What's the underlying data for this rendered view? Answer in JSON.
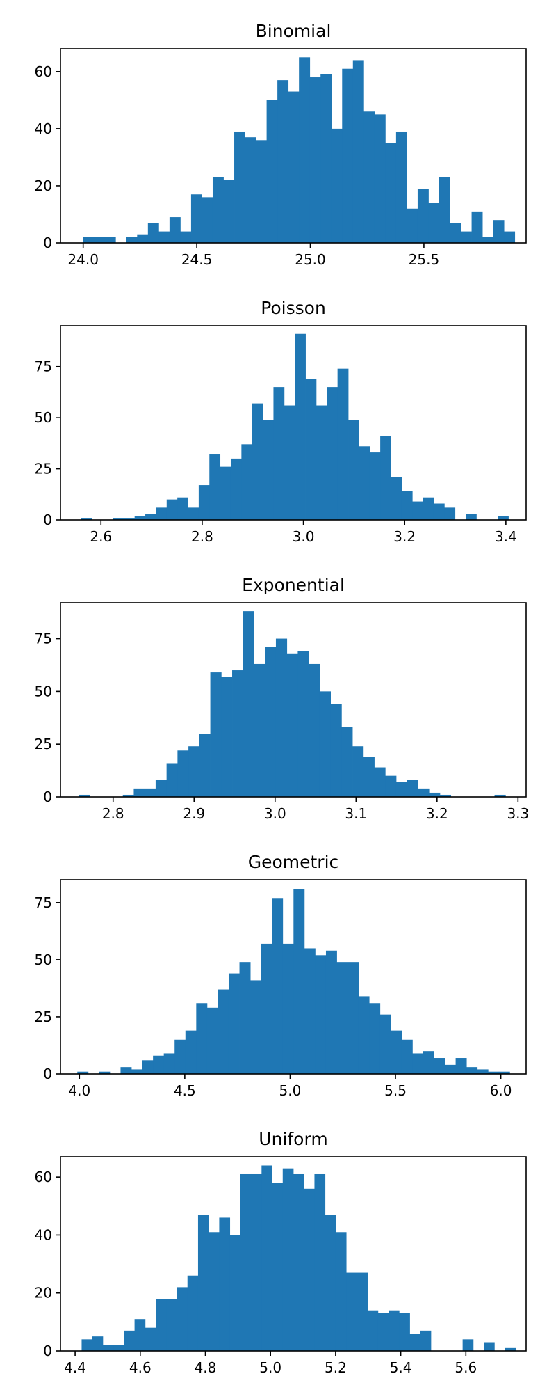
{
  "chart_data": [
    {
      "type": "bar",
      "title": "Binomial",
      "xlabel": "",
      "ylabel": "",
      "xlim": [
        23.9,
        25.95
      ],
      "ylim": [
        0,
        68
      ],
      "xticks": [
        24.0,
        24.5,
        25.0,
        25.5
      ],
      "xtick_labels": [
        "24.0",
        "24.5",
        "25.0",
        "25.5"
      ],
      "yticks": [
        0,
        20,
        40,
        60
      ],
      "ytick_labels": [
        "0",
        "20",
        "40",
        "60"
      ],
      "bin_start": 24.0,
      "bin_width": 0.0475,
      "values": [
        2,
        2,
        2,
        0,
        2,
        3,
        7,
        4,
        9,
        4,
        17,
        16,
        23,
        22,
        39,
        37,
        36,
        50,
        57,
        53,
        65,
        58,
        59,
        40,
        61,
        64,
        46,
        45,
        35,
        39,
        12,
        19,
        14,
        23,
        7,
        4,
        11,
        2,
        8,
        4
      ],
      "color": "#1f77b4"
    },
    {
      "type": "bar",
      "title": "Poisson",
      "xlabel": "",
      "ylabel": "",
      "xlim": [
        2.52,
        3.44
      ],
      "ylim": [
        0,
        95
      ],
      "xticks": [
        2.6,
        2.8,
        3.0,
        3.2,
        3.4
      ],
      "xtick_labels": [
        "2.6",
        "2.8",
        "3.0",
        "3.2",
        "3.4"
      ],
      "yticks": [
        0,
        25,
        50,
        75
      ],
      "ytick_labels": [
        "0",
        "25",
        "50",
        "75"
      ],
      "bin_start": 2.561,
      "bin_width": 0.0211,
      "values": [
        1,
        0,
        0,
        1,
        1,
        2,
        3,
        6,
        10,
        11,
        6,
        17,
        32,
        26,
        30,
        37,
        57,
        49,
        65,
        56,
        91,
        69,
        56,
        65,
        74,
        49,
        36,
        33,
        41,
        21,
        14,
        9,
        11,
        8,
        6,
        0,
        3,
        0,
        0,
        2
      ],
      "color": "#1f77b4"
    },
    {
      "type": "bar",
      "title": "Exponential",
      "xlabel": "",
      "ylabel": "",
      "xlim": [
        2.735,
        3.31
      ],
      "ylim": [
        0,
        92
      ],
      "xticks": [
        2.8,
        2.9,
        3.0,
        3.1,
        3.2,
        3.3
      ],
      "xtick_labels": [
        "2.8",
        "2.9",
        "3.0",
        "3.1",
        "3.2",
        "3.3"
      ],
      "yticks": [
        0,
        25,
        50,
        75
      ],
      "ytick_labels": [
        "0",
        "25",
        "50",
        "75"
      ],
      "bin_start": 2.758,
      "bin_width": 0.0135,
      "values": [
        1,
        0,
        0,
        0,
        1,
        4,
        4,
        8,
        16,
        22,
        24,
        30,
        59,
        57,
        60,
        88,
        63,
        71,
        75,
        68,
        69,
        63,
        50,
        44,
        33,
        24,
        19,
        14,
        10,
        7,
        8,
        4,
        2,
        1,
        0,
        0,
        0,
        0,
        1,
        0
      ],
      "color": "#1f77b4"
    },
    {
      "type": "bar",
      "title": "Geometric",
      "xlabel": "",
      "ylabel": "",
      "xlim": [
        3.91,
        6.12
      ],
      "ylim": [
        0,
        85
      ],
      "xticks": [
        4.0,
        4.5,
        5.0,
        5.5,
        6.0
      ],
      "xtick_labels": [
        "4.0",
        "4.5",
        "5.0",
        "5.5",
        "6.0"
      ],
      "yticks": [
        0,
        25,
        50,
        75
      ],
      "ytick_labels": [
        "0",
        "25",
        "50",
        "75"
      ],
      "bin_start": 3.99,
      "bin_width": 0.0513,
      "values": [
        1,
        0,
        1,
        0,
        3,
        2,
        6,
        8,
        9,
        15,
        19,
        31,
        29,
        37,
        44,
        49,
        41,
        57,
        77,
        57,
        81,
        55,
        52,
        54,
        49,
        49,
        34,
        31,
        26,
        19,
        15,
        9,
        10,
        7,
        4,
        7,
        3,
        2,
        1,
        1
      ],
      "color": "#1f77b4"
    },
    {
      "type": "bar",
      "title": "Uniform",
      "xlabel": "",
      "ylabel": "",
      "xlim": [
        4.355,
        5.785
      ],
      "ylim": [
        0,
        67
      ],
      "xticks": [
        4.4,
        4.6,
        4.8,
        5.0,
        5.2,
        5.4,
        5.6
      ],
      "xtick_labels": [
        "4.4",
        "4.6",
        "4.8",
        "5.0",
        "5.2",
        "5.4",
        "5.6"
      ],
      "yticks": [
        0,
        20,
        40,
        60
      ],
      "ytick_labels": [
        "0",
        "20",
        "40",
        "60"
      ],
      "bin_start": 4.42,
      "bin_width": 0.0325,
      "values": [
        4,
        5,
        2,
        2,
        7,
        11,
        8,
        18,
        18,
        22,
        26,
        47,
        41,
        46,
        40,
        61,
        61,
        64,
        58,
        63,
        61,
        56,
        61,
        47,
        41,
        27,
        27,
        14,
        13,
        14,
        13,
        6,
        7,
        0,
        0,
        0,
        4,
        0,
        3,
        0,
        1
      ],
      "color": "#1f77b4"
    }
  ]
}
